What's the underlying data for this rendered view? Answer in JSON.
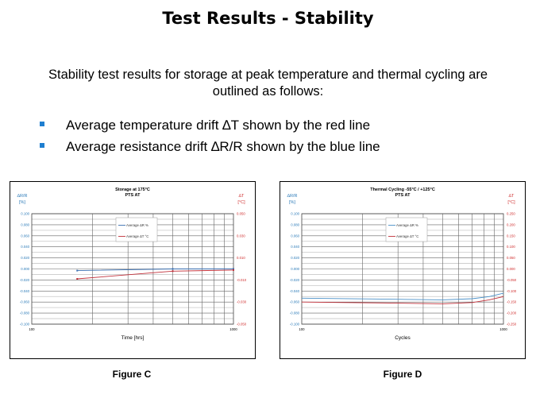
{
  "title": "Test Results - Stability",
  "intro": "Stability test results for storage at peak temperature and thermal cycling are outlined as follows:",
  "bullets": [
    "Average temperature drift ∆T shown by the red line",
    "Average resistance drift  ∆R/R shown by the blue line"
  ],
  "colors": {
    "blue": "#4a90c8",
    "red": "#d03030",
    "bullet": "#1f7fd0"
  },
  "figures": [
    "Figure C",
    "Figure D"
  ],
  "chart_data": [
    {
      "type": "line",
      "title": "Storage at 175°C",
      "subtitle": "PTS AT",
      "xlabel": "Time [hrs]",
      "xscale": "log",
      "xlim": [
        100,
        1000
      ],
      "xticks": [
        "100",
        "1000"
      ],
      "left_axis": {
        "label": "∆R/R",
        "unit": "[%]",
        "ylim": [
          -0.1,
          0.1
        ],
        "ticks": [
          "0.100",
          "0.080",
          "0.060",
          "0.040",
          "0.020",
          "0.000",
          "-0.020",
          "-0.040",
          "-0.060",
          "-0.080",
          "-0.100"
        ]
      },
      "right_axis": {
        "label": "∆T",
        "unit": "[°C]",
        "ylim": [
          -0.05,
          0.05
        ],
        "ticks": [
          "0.050",
          "",
          "0.030",
          "",
          "0.010",
          "",
          "-0.010",
          "",
          "-0.030",
          "",
          "-0.050"
        ]
      },
      "series": [
        {
          "name": "Average ∆R %",
          "axis": "left",
          "color": "#3a6fb0",
          "markers": true,
          "x": [
            168,
            500,
            1000
          ],
          "y": [
            -0.003,
            0.0,
            0.0
          ]
        },
        {
          "name": "Average ∆T °C",
          "axis": "right",
          "color": "#c0303a",
          "markers": true,
          "x": [
            168,
            500,
            1000
          ],
          "y": [
            -0.009,
            -0.002,
            -0.001
          ]
        }
      ],
      "legend": "top-center"
    },
    {
      "type": "line",
      "title": "Thermal Cycling -55°C / +125°C",
      "subtitle": "PTS AT",
      "xlabel": "Cycles",
      "xscale": "log",
      "xlim": [
        100,
        1000
      ],
      "xticks": [
        "100",
        "1000"
      ],
      "left_axis": {
        "label": "∆R/R",
        "unit": "[%]",
        "ylim": [
          -0.1,
          0.1
        ],
        "ticks": [
          "0.100",
          "0.080",
          "0.060",
          "0.040",
          "0.020",
          "0.000",
          "-0.020",
          "-0.040",
          "-0.060",
          "-0.080",
          "-0.100"
        ]
      },
      "right_axis": {
        "label": "∆T",
        "unit": "[°C]",
        "ylim": [
          -0.25,
          0.25
        ],
        "ticks": [
          "0.250",
          "0.200",
          "0.150",
          "0.100",
          "0.050",
          "0.000",
          "-0.050",
          "-0.100",
          "-0.150",
          "-0.200",
          "-0.250"
        ]
      },
      "series": [
        {
          "name": "Average ∆R %",
          "axis": "left",
          "color": "#4a90c8",
          "markers": false,
          "x": [
            100,
            300,
            500,
            700,
            850,
            1000
          ],
          "y": [
            -0.053,
            -0.055,
            -0.056,
            -0.054,
            -0.05,
            -0.044
          ]
        },
        {
          "name": "Average ∆T °C",
          "axis": "right",
          "color": "#c0303a",
          "markers": false,
          "x": [
            100,
            300,
            500,
            700,
            850,
            1000
          ],
          "y": [
            -0.15,
            -0.155,
            -0.158,
            -0.152,
            -0.14,
            -0.125
          ]
        }
      ],
      "legend": "top-center"
    }
  ]
}
